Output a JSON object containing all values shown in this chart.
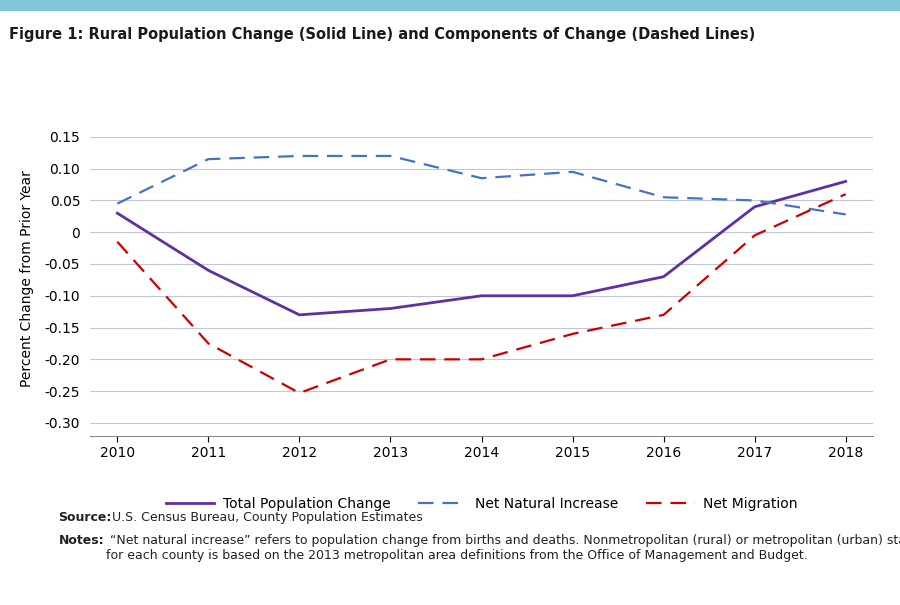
{
  "title": "Figure 1: Rural Population Change (Solid Line) and Components of Change (Dashed Lines)",
  "ylabel": "Percent Change from Prior Year",
  "years": [
    2010,
    2011,
    2012,
    2013,
    2014,
    2015,
    2016,
    2017,
    2018
  ],
  "total_pop_change": [
    0.03,
    -0.06,
    -0.13,
    -0.12,
    -0.1,
    -0.1,
    -0.07,
    0.04,
    0.08
  ],
  "net_natural_increase": [
    0.045,
    0.115,
    0.12,
    0.12,
    0.085,
    0.095,
    0.055,
    0.05,
    0.028
  ],
  "net_migration": [
    -0.015,
    -0.175,
    -0.253,
    -0.2,
    -0.2,
    -0.16,
    -0.13,
    -0.005,
    0.06
  ],
  "ylim": [
    -0.32,
    0.175
  ],
  "yticks": [
    -0.3,
    -0.25,
    -0.2,
    -0.15,
    -0.1,
    -0.05,
    0.0,
    0.05,
    0.1,
    0.15
  ],
  "total_color": "#6030a0",
  "natural_color": "#4472c4",
  "migration_color": "#cc0000",
  "bg_color": "#ffffff",
  "plot_bg_color": "#ffffff",
  "grid_color": "#c0c8d8",
  "source_bold": "Source:",
  "source_rest": " U.S. Census Bureau, County Population Estimates",
  "notes_bold": "Notes:",
  "notes_rest": " “Net natural increase” refers to population change from births and deaths. Nonmetropolitan (rural) or metropolitan (urban) status\nfor each county is based on the 2013 metropolitan area definitions from the Office of Management and Budget.",
  "legend_total": "Total Population Change",
  "legend_natural": "Net Natural Increase",
  "legend_migration": "Net Migration",
  "title_bar_color": "#7ec8d8"
}
